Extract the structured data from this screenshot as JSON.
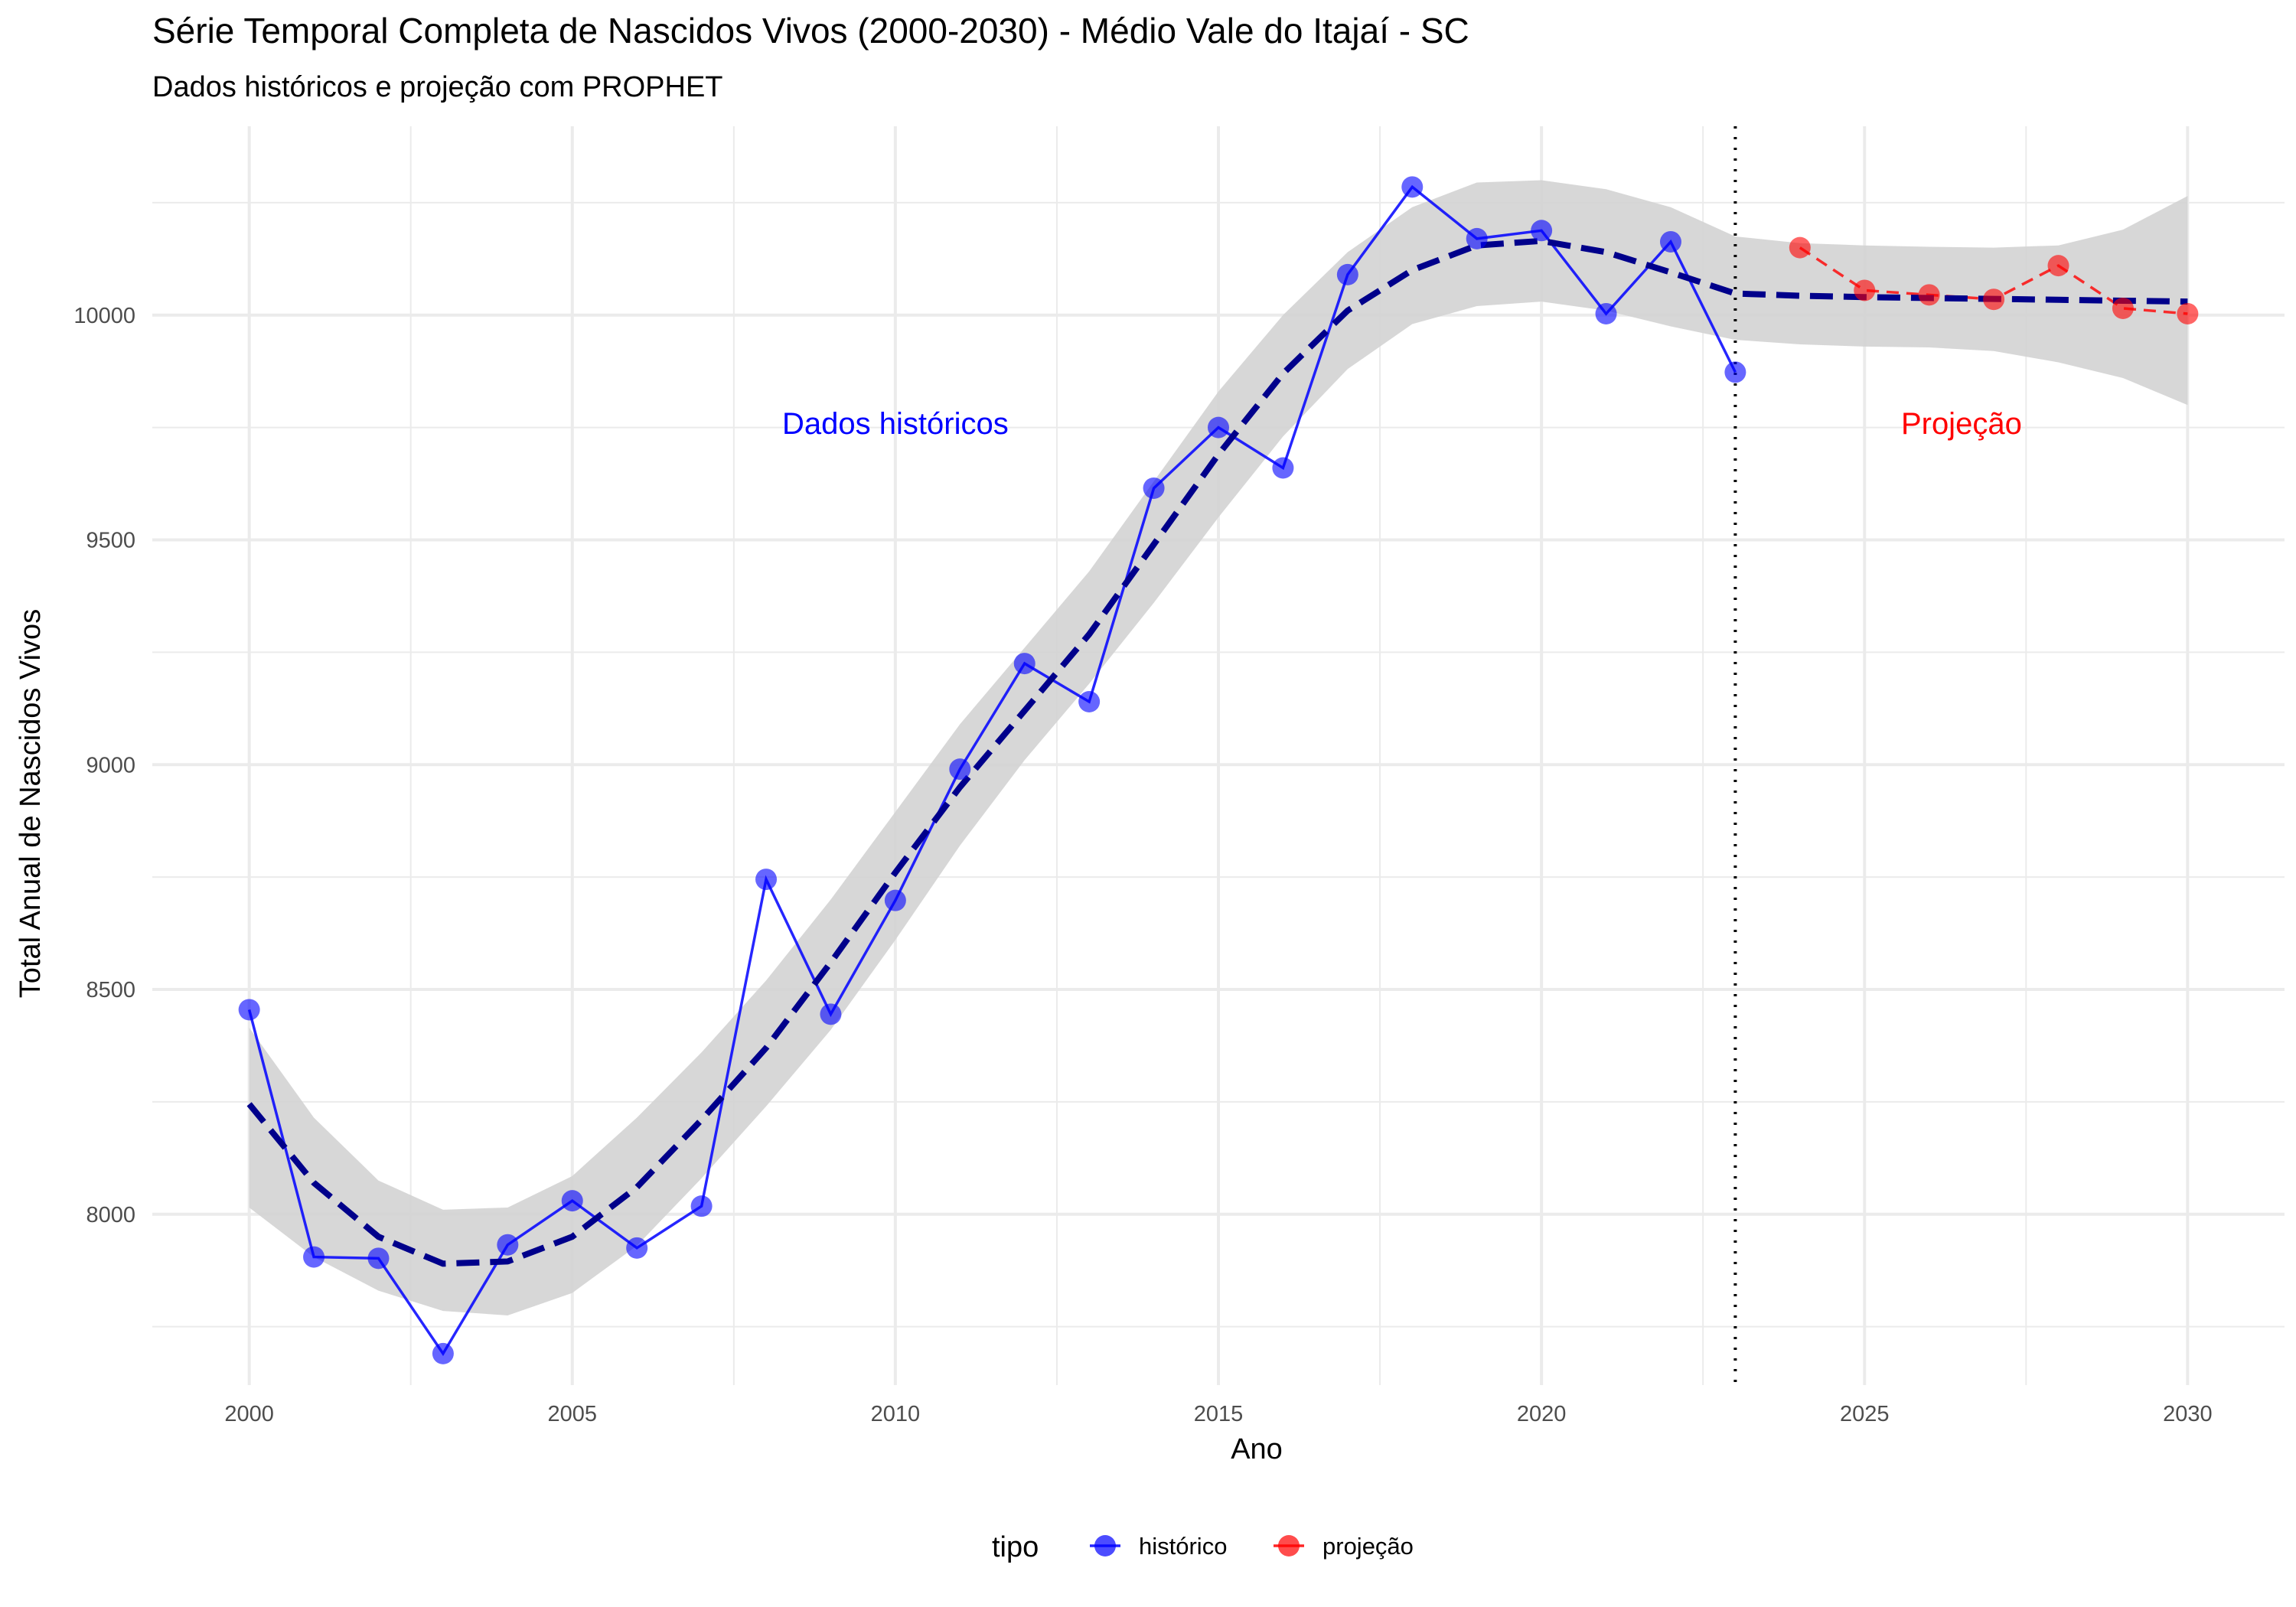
{
  "colors": {
    "historico": "#0000FF",
    "projecao": "#FF0000",
    "trend": "#00008B",
    "ribbon": "#D3D3D3",
    "grid": "#EBEBEB"
  },
  "chart_data": {
    "type": "line",
    "title": "Série Temporal Completa de Nascidos Vivos (2000-2030) -  Médio Vale do Itajaí - SC",
    "subtitle": "Dados históricos e projeção com PROPHET",
    "xlabel": "Ano",
    "ylabel": "Total Anual de Nascidos Vivos",
    "xlim": [
      1998.5,
      2031.5
    ],
    "ylim": [
      7620,
      10420
    ],
    "x_ticks": [
      2000,
      2005,
      2010,
      2015,
      2020,
      2025,
      2030
    ],
    "y_ticks": [
      8000,
      8500,
      9000,
      9500,
      10000
    ],
    "grid": true,
    "cutoff_year": 2023,
    "annotations": [
      {
        "text": "Dados históricos",
        "x": 2010,
        "y": 9760,
        "color": "#0000FF"
      },
      {
        "text": "Projeção",
        "x": 2026.5,
        "y": 9760,
        "color": "#FF0000"
      }
    ],
    "legend": {
      "title": "tipo",
      "position": "bottom",
      "entries": [
        {
          "label": "histórico",
          "color": "#0000FF"
        },
        {
          "label": "projeção",
          "color": "#FF0000"
        }
      ]
    },
    "series": [
      {
        "name": "histórico",
        "x": [
          2000,
          2001,
          2002,
          2003,
          2004,
          2005,
          2006,
          2007,
          2008,
          2009,
          2010,
          2011,
          2012,
          2013,
          2014,
          2015,
          2016,
          2017,
          2018,
          2019,
          2020,
          2021,
          2022,
          2023
        ],
        "values": [
          8455,
          7905,
          7902,
          7690,
          7932,
          8030,
          7925,
          8018,
          8745,
          8445,
          8698,
          8990,
          9225,
          9140,
          9615,
          9750,
          9660,
          10090,
          10285,
          10170,
          10188,
          10003,
          10163,
          9873
        ]
      },
      {
        "name": "projeção",
        "x": [
          2024,
          2025,
          2026,
          2027,
          2028,
          2029,
          2030
        ],
        "values": [
          10150,
          10055,
          10045,
          10035,
          10110,
          10015,
          10003
        ]
      }
    ],
    "trend": {
      "x": [
        2000,
        2001,
        2002,
        2003,
        2004,
        2005,
        2006,
        2007,
        2008,
        2009,
        2010,
        2011,
        2012,
        2013,
        2014,
        2015,
        2016,
        2017,
        2018,
        2019,
        2020,
        2021,
        2022,
        2023,
        2024,
        2025,
        2026,
        2027,
        2028,
        2029,
        2030
      ],
      "values": [
        8245,
        8070,
        7950,
        7890,
        7895,
        7950,
        8060,
        8210,
        8370,
        8560,
        8760,
        8950,
        9120,
        9290,
        9490,
        9690,
        9870,
        10010,
        10100,
        10155,
        10165,
        10140,
        10095,
        10048,
        10043,
        10040,
        10038,
        10036,
        10034,
        10032,
        10030
      ],
      "lower": [
        8015,
        7905,
        7830,
        7785,
        7775,
        7825,
        7930,
        8080,
        8240,
        8410,
        8610,
        8820,
        9010,
        9180,
        9360,
        9550,
        9730,
        9880,
        9980,
        10020,
        10030,
        10010,
        9975,
        9945,
        9935,
        9930,
        9928,
        9920,
        9895,
        9860,
        9800
      ],
      "upper": [
        8415,
        8215,
        8075,
        8010,
        8015,
        8085,
        8215,
        8360,
        8520,
        8700,
        8895,
        9090,
        9260,
        9430,
        9630,
        9830,
        10000,
        10140,
        10240,
        10295,
        10300,
        10280,
        10240,
        10175,
        10160,
        10155,
        10152,
        10150,
        10155,
        10190,
        10265
      ]
    }
  }
}
